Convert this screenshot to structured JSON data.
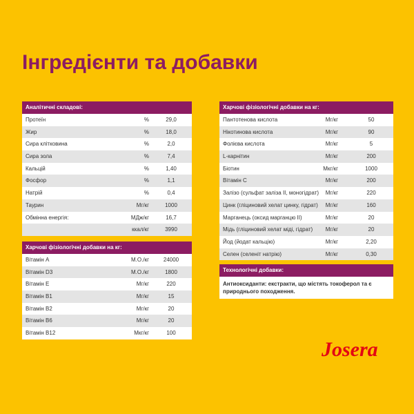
{
  "title": "Інгредієнти та добавки",
  "tables": [
    {
      "header": "Аналітичні складові:",
      "rows": [
        [
          "Протеїн",
          "%",
          "29,0"
        ],
        [
          "Жир",
          "%",
          "18,0"
        ],
        [
          "Сира клітковина",
          "%",
          "2,0"
        ],
        [
          "Сира зола",
          "%",
          "7,4"
        ],
        [
          "Кальцій",
          "%",
          "1,40"
        ],
        [
          "Фосфор",
          "%",
          "1,1"
        ],
        [
          "Натрій",
          "%",
          "0,4"
        ],
        [
          "Таурин",
          "Мг/кг",
          "1000"
        ],
        [
          "Обмінна енергія:",
          "МДж/кг",
          "16,7"
        ],
        [
          null,
          "ккал/кг",
          "3990"
        ]
      ]
    },
    {
      "header": "Харчові фізіологічні добавки на кг:",
      "rows": [
        [
          "Вітамін A",
          "М.О./кг",
          "24000"
        ],
        [
          "Вітамін D3",
          "М.О./кг",
          "1800"
        ],
        [
          "Вітамін E",
          "Мг/кг",
          "220"
        ],
        [
          "Вітамін B1",
          "Мг/кг",
          "15"
        ],
        [
          "Вітамін B2",
          "Мг/кг",
          "20"
        ],
        [
          "Вітамін B6",
          "Мг/кг",
          "20"
        ],
        [
          "Вітамін B12",
          "Мкг/кг",
          "100"
        ]
      ]
    },
    {
      "header": "Харчові фізіологічні добавки на кг:",
      "rows": [
        [
          "Пантотенова кислота",
          "Мг/кг",
          "50"
        ],
        [
          "Нікотинова кислота",
          "Мг/кг",
          "90"
        ],
        [
          "Фолієва кислота",
          "Мг/кг",
          "5"
        ],
        [
          "L-карнітин",
          "Мг/кг",
          "200"
        ],
        [
          "Біотин",
          "Мкг/кг",
          "1000"
        ],
        [
          "Вітамін C",
          "Мг/кг",
          "200"
        ],
        [
          "Залізо (сульфат заліза II, моногідрат)",
          "Мг/кг",
          "220"
        ],
        [
          "Цинк (гліциновий хелат цинку, гідрат)",
          "Мг/кг",
          "160"
        ],
        [
          "Марганець (оксид марганцю II)",
          "Мг/кг",
          "20"
        ],
        [
          "Мідь (гліциновий хелат міді, гідрат)",
          "Мг/кг",
          "20"
        ],
        [
          "Йод (йодат кальцію)",
          "Мг/кг",
          "2,20"
        ],
        [
          "Селен (селеніт натрію)",
          "Мг/кг",
          "0,30"
        ]
      ]
    },
    {
      "header": "Технологічні добавки:",
      "text": "Антиоксиданти: екстракти, що містять токоферол та є природнього походження."
    }
  ],
  "logo": "Josera"
}
